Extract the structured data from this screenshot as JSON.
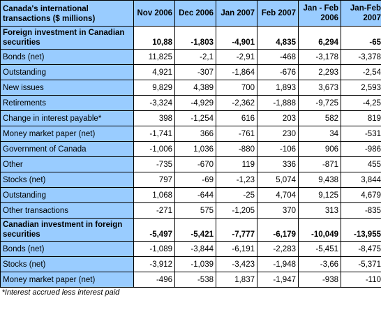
{
  "table": {
    "header_title": "Canada's international transactions ($ millions)",
    "columns": [
      "Nov 2006",
      "Dec 2006",
      "Jan 2007",
      "Feb 2007",
      "Jan - Feb 2006",
      "Jan-Feb 2007"
    ],
    "rows": [
      {
        "label": "Foreign investment in Canadian securities",
        "section": true,
        "values": [
          "10,88",
          "-1,803",
          "-4,901",
          "4,835",
          "6,294",
          "-65"
        ]
      },
      {
        "label": "Bonds (net)",
        "section": false,
        "values": [
          "11,825",
          "-2,1",
          "-2,91",
          "-468",
          "-3,178",
          "-3,378"
        ]
      },
      {
        "label": "Outstanding",
        "section": false,
        "values": [
          "4,921",
          "-307",
          "-1,864",
          "-676",
          "2,293",
          "-2,54"
        ]
      },
      {
        "label": "New issues",
        "section": false,
        "values": [
          "9,829",
          "4,389",
          "700",
          "1,893",
          "3,673",
          "2,593"
        ]
      },
      {
        "label": "Retirements",
        "section": false,
        "values": [
          "-3,324",
          "-4,929",
          "-2,362",
          "-1,888",
          "-9,725",
          "-4,25"
        ]
      },
      {
        "label": "Change in interest payable*",
        "section": false,
        "values": [
          "398",
          "-1,254",
          "616",
          "203",
          "582",
          "819"
        ]
      },
      {
        "label": "Money market paper (net)",
        "section": false,
        "values": [
          "-1,741",
          "366",
          "-761",
          "230",
          "34",
          "-531"
        ]
      },
      {
        "label": "Government of Canada",
        "section": false,
        "values": [
          "-1,006",
          "1,036",
          "-880",
          "-106",
          "906",
          "-986"
        ]
      },
      {
        "label": "Other",
        "section": false,
        "values": [
          "-735",
          "-670",
          "119",
          "336",
          "-871",
          "455"
        ]
      },
      {
        "label": "Stocks (net)",
        "section": false,
        "values": [
          "797",
          "-69",
          "-1,23",
          "5,074",
          "9,438",
          "3,844"
        ]
      },
      {
        "label": "Outstanding",
        "section": false,
        "values": [
          "1,068",
          "-644",
          "-25",
          "4,704",
          "9,125",
          "4,679"
        ]
      },
      {
        "label": "Other transactions",
        "section": false,
        "values": [
          "-271",
          "575",
          "-1,205",
          "370",
          "313",
          "-835"
        ]
      },
      {
        "label": "Canadian investment in foreign securities",
        "section": true,
        "values": [
          "-5,497",
          "-5,421",
          "-7,777",
          "-6,179",
          "-10,049",
          "-13,955"
        ]
      },
      {
        "label": "Bonds (net)",
        "section": false,
        "values": [
          "-1,089",
          "-3,844",
          "-6,191",
          "-2,283",
          "-5,451",
          "-8,475"
        ]
      },
      {
        "label": "Stocks (net)",
        "section": false,
        "values": [
          "-3,912",
          "-1,039",
          "-3,423",
          "-1,948",
          "-3,66",
          "-5,371"
        ]
      },
      {
        "label": "Money market paper (net)",
        "section": false,
        "values": [
          "-496",
          "-538",
          "1,837",
          "-1,947",
          "-938",
          "-110"
        ]
      }
    ],
    "footnote": "*Interest accrued less interest paid"
  },
  "colors": {
    "header_bg": "#99ccff",
    "cell_bg": "#ffffff",
    "border": "#000000"
  }
}
